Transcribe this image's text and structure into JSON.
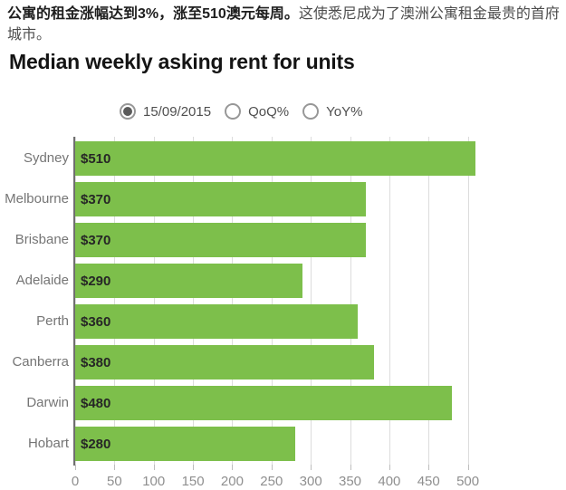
{
  "header": {
    "paragraph_bold": "公寓的租金涨幅达到3%，涨至510澳元每周。",
    "paragraph_rest": "这使悉尼成为了澳洲公寓租金最贵的首府城市。",
    "title": "Median weekly asking rent for units"
  },
  "controls": {
    "options": [
      {
        "label": "15/09/2015",
        "selected": true
      },
      {
        "label": "QoQ%",
        "selected": false
      },
      {
        "label": "YoY%",
        "selected": false
      }
    ]
  },
  "chart_data": {
    "type": "bar",
    "orientation": "horizontal",
    "title": "Median weekly asking rent for units",
    "categories": [
      "Sydney",
      "Melbourne",
      "Brisbane",
      "Adelaide",
      "Perth",
      "Canberra",
      "Darwin",
      "Hobart"
    ],
    "values": [
      510,
      370,
      370,
      290,
      360,
      380,
      480,
      280
    ],
    "value_labels": [
      "$510",
      "$370",
      "$370",
      "$290",
      "$360",
      "$380",
      "$480",
      "$280"
    ],
    "xlabel": "",
    "ylabel": "",
    "xlim": [
      0,
      512
    ],
    "xticks": [
      0,
      50,
      100,
      150,
      200,
      250,
      300,
      350,
      400,
      450,
      500
    ],
    "grid": true,
    "legend": "none",
    "colors": {
      "bar": "#7dbf4b",
      "gridline": "#dcdcdc",
      "axis_line": "#6f6f6f",
      "category_label": "#757575",
      "tick_label": "#8f8f8f",
      "value_label": "#262626"
    }
  }
}
